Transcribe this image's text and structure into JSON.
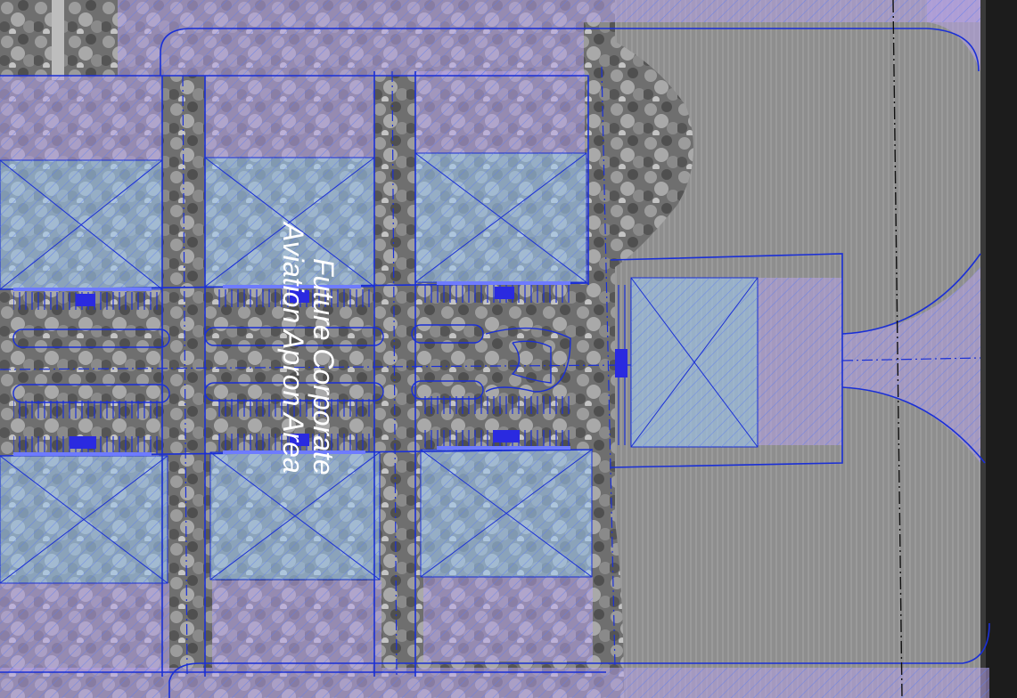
{
  "map": {
    "label_line1": "Future Corporate",
    "label_line2": "Aviation Apron Area"
  },
  "colors": {
    "plan_line": "#1a2fd6",
    "hatch": "#8aa8ff",
    "purple_zone": "#b9a6e6",
    "blue_zone": "#9ec3e8",
    "aerial_vegetation": "#7a7a7a",
    "aerial_field": "#8c8c8c",
    "runway_edge": "#1c1c1c"
  }
}
